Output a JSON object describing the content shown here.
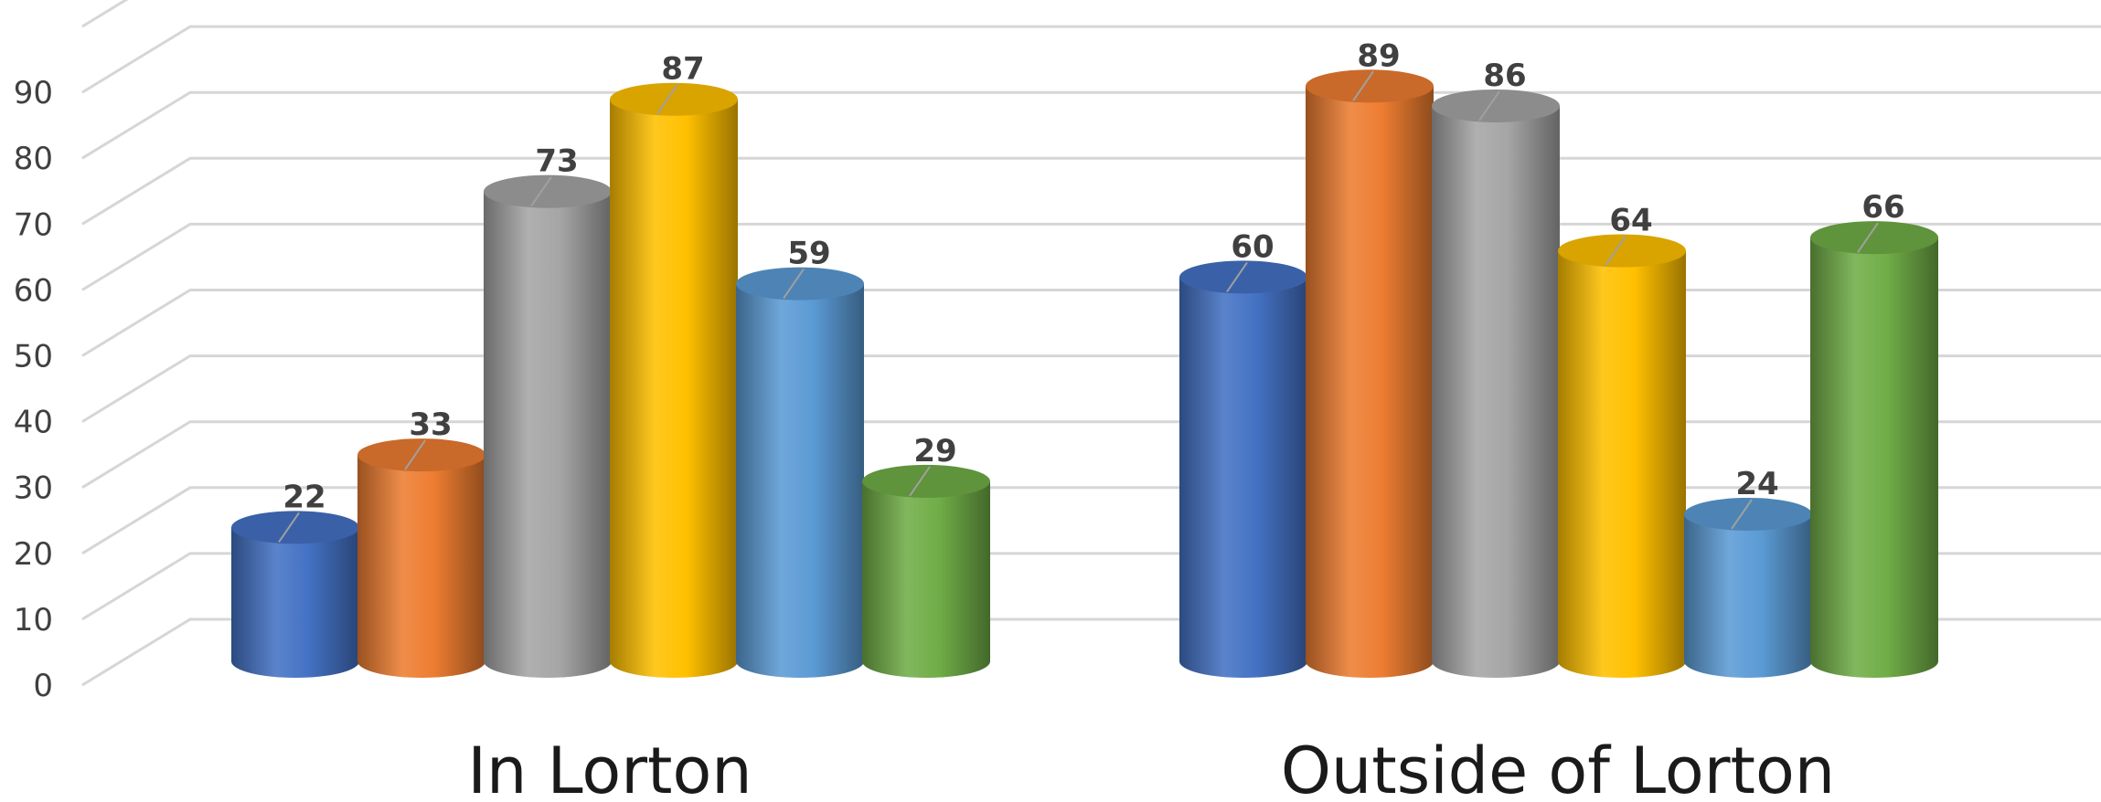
{
  "chart_data": {
    "type": "bar",
    "style": "3d-cylinder",
    "categories": [
      "In Lorton",
      "Outside of Lorton"
    ],
    "series": [
      {
        "values": [
          22,
          60
        ],
        "color": "#4472C4"
      },
      {
        "values": [
          33,
          89
        ],
        "color": "#ED7D31"
      },
      {
        "values": [
          73,
          86
        ],
        "color": "#A5A5A5"
      },
      {
        "values": [
          87,
          64
        ],
        "color": "#FFC000"
      },
      {
        "values": [
          59,
          24
        ],
        "color": "#5B9BD5"
      },
      {
        "values": [
          29,
          66
        ],
        "color": "#70AD47"
      }
    ],
    "yticks": [
      "0",
      "10",
      "20",
      "30",
      "40",
      "50",
      "60",
      "70",
      "80",
      "90"
    ],
    "ylim": [
      0,
      100
    ],
    "title": "",
    "xlabel": "",
    "ylabel": "",
    "grid": true,
    "legend": "none"
  }
}
